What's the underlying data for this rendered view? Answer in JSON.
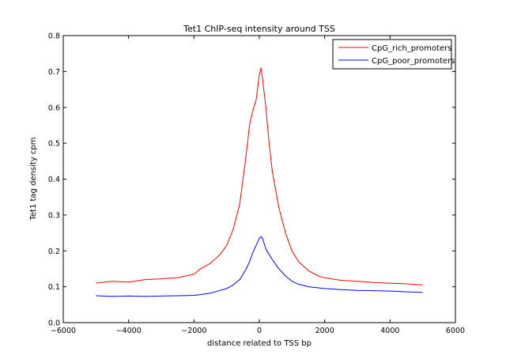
{
  "chart_data": {
    "type": "line",
    "title": "Tet1 ChIP-seq intensity around TSS",
    "xlabel": "distance related to TSS  bp",
    "ylabel": "Tet1 tag density cpm",
    "xlim": [
      -6000,
      6000
    ],
    "ylim": [
      0,
      0.8
    ],
    "xticks": [
      -6000,
      -4000,
      -2000,
      0,
      2000,
      4000,
      6000
    ],
    "xtick_labels": [
      "−6000",
      "−4000",
      "−2000",
      "0",
      "2000",
      "4000",
      "6000"
    ],
    "yticks": [
      0.0,
      0.1,
      0.2,
      0.3,
      0.4,
      0.5,
      0.6,
      0.7,
      0.8
    ],
    "ytick_labels": [
      "0.0",
      "0.1",
      "0.2",
      "0.3",
      "0.4",
      "0.5",
      "0.6",
      "0.7",
      "0.8"
    ],
    "grid": false,
    "legend_position": "top-right",
    "series": [
      {
        "name": "CpG_rich_promoters",
        "color": "#ff0000",
        "x": [
          -5000,
          -4500,
          -4000,
          -3500,
          -3000,
          -2500,
          -2000,
          -1800,
          -1500,
          -1200,
          -1000,
          -800,
          -600,
          -400,
          -300,
          -200,
          -100,
          0,
          50,
          100,
          200,
          300,
          400,
          600,
          800,
          1000,
          1200,
          1500,
          1800,
          2000,
          2500,
          3000,
          3500,
          4000,
          4500,
          5000
        ],
        "values": [
          0.11,
          0.115,
          0.113,
          0.12,
          0.122,
          0.125,
          0.135,
          0.15,
          0.165,
          0.19,
          0.215,
          0.26,
          0.33,
          0.47,
          0.55,
          0.59,
          0.62,
          0.69,
          0.71,
          0.68,
          0.6,
          0.5,
          0.42,
          0.32,
          0.25,
          0.2,
          0.17,
          0.145,
          0.13,
          0.125,
          0.118,
          0.115,
          0.112,
          0.11,
          0.108,
          0.105
        ]
      },
      {
        "name": "CpG_poor_promoters",
        "color": "#0000ff",
        "x": [
          -5000,
          -4500,
          -4000,
          -3500,
          -3000,
          -2500,
          -2000,
          -1800,
          -1500,
          -1200,
          -1000,
          -800,
          -600,
          -400,
          -300,
          -200,
          -100,
          0,
          50,
          100,
          200,
          300,
          400,
          600,
          800,
          1000,
          1200,
          1500,
          1800,
          2000,
          2500,
          3000,
          3500,
          4000,
          4500,
          5000
        ],
        "values": [
          0.075,
          0.073,
          0.074,
          0.073,
          0.074,
          0.075,
          0.076,
          0.078,
          0.082,
          0.09,
          0.095,
          0.105,
          0.12,
          0.15,
          0.17,
          0.195,
          0.215,
          0.235,
          0.24,
          0.235,
          0.205,
          0.19,
          0.175,
          0.15,
          0.13,
          0.115,
          0.107,
          0.1,
          0.097,
          0.095,
          0.092,
          0.09,
          0.089,
          0.088,
          0.086,
          0.084
        ]
      }
    ]
  }
}
